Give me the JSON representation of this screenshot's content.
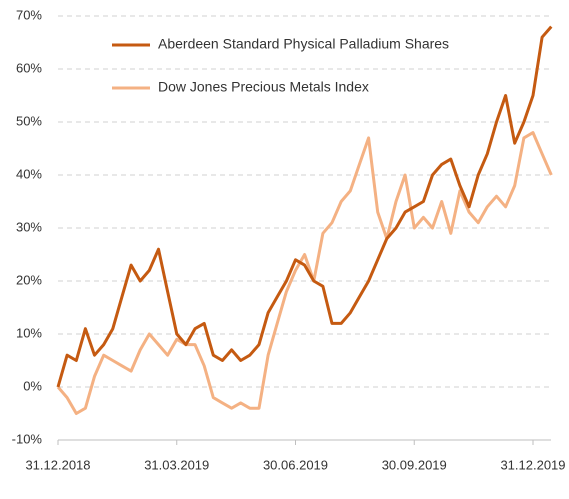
{
  "chart_data": {
    "type": "line",
    "categories": [
      "31.12.2018",
      null,
      null,
      null,
      null,
      null,
      null,
      null,
      null,
      null,
      null,
      null,
      null,
      "31.03.2019",
      null,
      null,
      null,
      null,
      null,
      null,
      null,
      null,
      null,
      null,
      null,
      null,
      "30.06.2019",
      null,
      null,
      null,
      null,
      null,
      null,
      null,
      null,
      null,
      null,
      null,
      null,
      "30.09.2019",
      null,
      null,
      null,
      null,
      null,
      null,
      null,
      null,
      null,
      null,
      null,
      null,
      "31.12.2019",
      null,
      null
    ],
    "series": [
      {
        "name": "Aberdeen Standard Physical Palladium Shares",
        "color": "#c55a11",
        "values": [
          0,
          6,
          5,
          11,
          6,
          8,
          11,
          17,
          23,
          20,
          22,
          26,
          18,
          10,
          8,
          11,
          12,
          6,
          5,
          7,
          5,
          6,
          8,
          14,
          17,
          20,
          24,
          23,
          20,
          19,
          12,
          12,
          14,
          17,
          20,
          24,
          28,
          30,
          33,
          34,
          35,
          40,
          42,
          43,
          38,
          34,
          40,
          44,
          50,
          55,
          46,
          50,
          55,
          66,
          68
        ]
      },
      {
        "name": "Dow Jones Precious Metals Index",
        "color": "#f4b183",
        "values": [
          0,
          -2,
          -5,
          -4,
          2,
          6,
          5,
          4,
          3,
          7,
          10,
          8,
          6,
          9,
          8,
          8,
          4,
          -2,
          -3,
          -4,
          -3,
          -4,
          -4,
          6,
          12,
          18,
          22,
          25,
          20,
          29,
          31,
          35,
          37,
          42,
          47,
          33,
          28,
          35,
          40,
          30,
          32,
          30,
          35,
          29,
          37,
          33,
          31,
          34,
          36,
          34,
          38,
          47,
          48,
          44,
          40
        ]
      }
    ],
    "ylim": [
      -10,
      70
    ],
    "yticks": [
      {
        "value": -10,
        "label": "-10%"
      },
      {
        "value": 0,
        "label": "0%"
      },
      {
        "value": 10,
        "label": "10%"
      },
      {
        "value": 20,
        "label": "20%"
      },
      {
        "value": 30,
        "label": "30%"
      },
      {
        "value": 40,
        "label": "40%"
      },
      {
        "value": 50,
        "label": "50%"
      },
      {
        "value": 60,
        "label": "60%"
      },
      {
        "value": 70,
        "label": "70%"
      }
    ],
    "grid": true
  }
}
